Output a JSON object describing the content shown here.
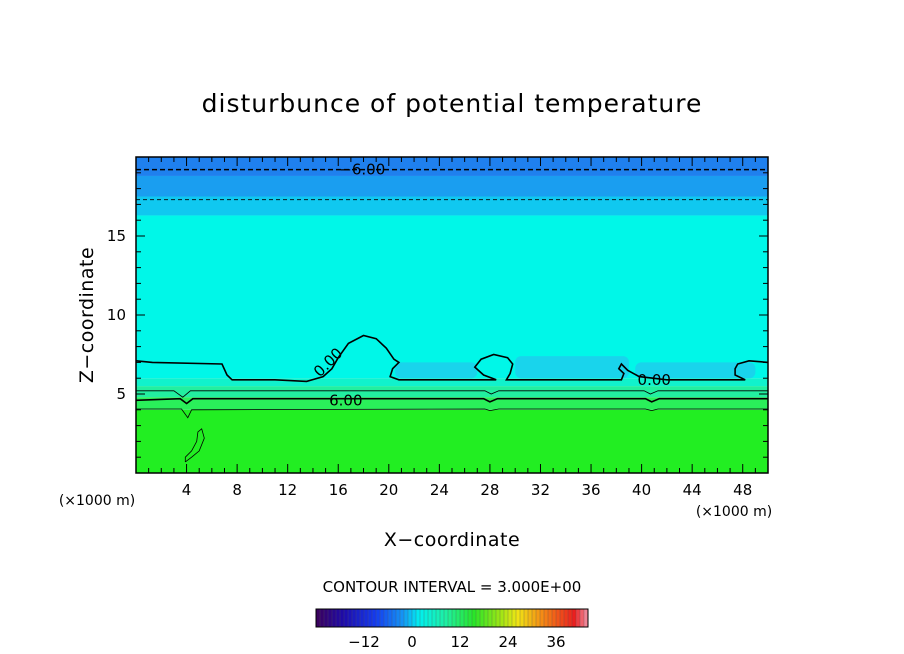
{
  "chart_data": {
    "type": "heatmap",
    "title": "disturbunce of potential temperature",
    "xlabel": "X−coordinate",
    "ylabel": "Z−coordinate",
    "x_unit": "(×1000 m)",
    "x_unit_left": "(×1000 m)",
    "xlim": [
      0,
      50
    ],
    "ylim": [
      0,
      20
    ],
    "x_ticks": [
      4,
      8,
      12,
      16,
      20,
      24,
      28,
      32,
      36,
      40,
      44,
      48
    ],
    "x_tick_labels": [
      "4",
      "8",
      "12",
      "16",
      "20",
      "24",
      "28",
      "32",
      "36",
      "40",
      "44",
      "48"
    ],
    "y_ticks": [
      5,
      10,
      15
    ],
    "y_tick_labels": [
      "5",
      "10",
      "15"
    ],
    "field_bands": [
      {
        "z": [
          0,
          4.0
        ],
        "value": 16,
        "color": "#22ee22"
      },
      {
        "z": [
          4.0,
          4.8
        ],
        "value": 12,
        "color": "#2aef5a"
      },
      {
        "z": [
          4.8,
          5.5
        ],
        "value": 8,
        "color": "#22efa0"
      },
      {
        "z": [
          5.5,
          6.0
        ],
        "value": 4,
        "color": "#11f2cc"
      },
      {
        "z": [
          6.0,
          16.3
        ],
        "value": 0,
        "color": "#00f7e8"
      },
      {
        "z": [
          16.3,
          17.5
        ],
        "value": -2,
        "color": "#10c8f0"
      },
      {
        "z": [
          17.5,
          18.8
        ],
        "value": -4,
        "color": "#1a9ef0"
      },
      {
        "z": [
          18.8,
          20.0
        ],
        "value": -6,
        "color": "#1f80ee"
      }
    ],
    "cloud_patches": [
      {
        "x": [
          20.5,
          27.0
        ],
        "z": [
          6.0,
          7.0
        ],
        "color": "#22c8ee"
      },
      {
        "x": [
          30.0,
          39.0
        ],
        "z": [
          6.0,
          7.4
        ],
        "color": "#22c8ee"
      },
      {
        "x": [
          39.5,
          49.0
        ],
        "z": [
          6.0,
          7.0
        ],
        "color": "#22c8ee"
      }
    ],
    "contours": [
      {
        "level": 0,
        "label": "0.00",
        "style": "solid",
        "points": [
          [
            0,
            7.1
          ],
          [
            1.3,
            7.0
          ],
          [
            6.8,
            6.9
          ],
          [
            7.2,
            6.2
          ],
          [
            7.6,
            5.9
          ],
          [
            11.0,
            5.9
          ],
          [
            13.5,
            5.8
          ],
          [
            14.8,
            6.1
          ],
          [
            15.5,
            6.6
          ],
          [
            16.0,
            7.3
          ],
          [
            16.8,
            8.2
          ],
          [
            18.0,
            8.7
          ],
          [
            19.0,
            8.5
          ],
          [
            19.8,
            7.9
          ],
          [
            20.4,
            7.2
          ],
          [
            20.8,
            7.0
          ],
          [
            20.3,
            6.6
          ],
          [
            20.1,
            6.1
          ],
          [
            20.8,
            5.9
          ],
          [
            28.5,
            5.9
          ],
          [
            27.5,
            6.2
          ],
          [
            26.8,
            6.7
          ],
          [
            27.3,
            7.2
          ],
          [
            28.3,
            7.5
          ],
          [
            29.4,
            7.3
          ],
          [
            29.8,
            6.9
          ],
          [
            29.6,
            6.3
          ],
          [
            29.3,
            5.9
          ],
          [
            30.5,
            5.9
          ],
          [
            38.4,
            5.9
          ],
          [
            38.6,
            6.3
          ],
          [
            38.2,
            6.6
          ],
          [
            38.4,
            6.9
          ],
          [
            38.9,
            6.5
          ],
          [
            39.8,
            6.1
          ],
          [
            42.0,
            5.9
          ],
          [
            46.0,
            5.9
          ],
          [
            48.2,
            5.9
          ],
          [
            47.4,
            6.2
          ],
          [
            47.4,
            6.6
          ],
          [
            47.6,
            6.9
          ],
          [
            48.5,
            7.1
          ],
          [
            50,
            7.0
          ]
        ]
      },
      {
        "level": 6,
        "label": "6.00",
        "style": "solid",
        "points": [
          [
            0,
            4.6
          ],
          [
            3.5,
            4.7
          ],
          [
            4.0,
            4.4
          ],
          [
            4.5,
            4.7
          ],
          [
            27.5,
            4.7
          ],
          [
            28.0,
            4.5
          ],
          [
            28.6,
            4.7
          ],
          [
            40.3,
            4.7
          ],
          [
            40.8,
            4.5
          ],
          [
            41.4,
            4.7
          ],
          [
            50,
            4.7
          ]
        ]
      },
      {
        "level": 3,
        "label": "",
        "style": "solid-thin",
        "points": [
          [
            0,
            5.2
          ],
          [
            3.0,
            5.2
          ],
          [
            3.7,
            4.8
          ],
          [
            4.3,
            5.2
          ],
          [
            27.6,
            5.2
          ],
          [
            28.1,
            5.0
          ],
          [
            28.7,
            5.2
          ],
          [
            40.2,
            5.2
          ],
          [
            40.7,
            5.0
          ],
          [
            41.3,
            5.2
          ],
          [
            50,
            5.2
          ]
        ]
      },
      {
        "level": 9,
        "label": "",
        "style": "solid-thin",
        "points": [
          [
            0,
            4.05
          ],
          [
            3.6,
            4.05
          ],
          [
            4.1,
            3.5
          ],
          [
            4.4,
            4.0
          ],
          [
            27.6,
            4.05
          ],
          [
            28.0,
            3.95
          ],
          [
            28.7,
            4.05
          ],
          [
            40.3,
            4.05
          ],
          [
            40.8,
            3.95
          ],
          [
            41.3,
            4.05
          ],
          [
            50,
            4.05
          ]
        ]
      },
      {
        "level": 12,
        "label": "",
        "style": "solid-thin",
        "points": [
          [
            3.9,
            0.7
          ],
          [
            4.4,
            1.0
          ],
          [
            5.0,
            1.4
          ],
          [
            5.4,
            2.2
          ],
          [
            5.2,
            2.8
          ],
          [
            4.9,
            2.6
          ],
          [
            4.8,
            2.0
          ],
          [
            4.4,
            1.4
          ],
          [
            3.9,
            1.0
          ],
          [
            3.9,
            0.7
          ]
        ]
      },
      {
        "level": -6,
        "label": "−6.00",
        "style": "dashed",
        "points": [
          [
            0,
            19.2
          ],
          [
            50,
            19.2
          ]
        ]
      },
      {
        "level": -3,
        "label": "",
        "style": "dashed-thin",
        "points": [
          [
            0,
            17.3
          ],
          [
            50,
            17.3
          ]
        ]
      }
    ],
    "contour_label_positions": [
      {
        "label": "0.00",
        "x": 15.2,
        "z": 7.0,
        "rotate": -45
      },
      {
        "label": "0.00",
        "x": 41.0,
        "z": 5.9,
        "rotate": 0
      },
      {
        "label": "6.00",
        "x": 16.6,
        "z": 4.6,
        "rotate": 0
      },
      {
        "label": "−6.00",
        "x": 17.9,
        "z": 19.2,
        "rotate": 0
      }
    ],
    "contour_interval_text": "CONTOUR INTERVAL = 3.000E+00",
    "colorbar": {
      "range": [
        -24,
        44
      ],
      "tick_values": [
        -12,
        0,
        12,
        24,
        36
      ],
      "tick_labels": [
        "−12",
        "0",
        "12",
        "24",
        "36"
      ]
    }
  }
}
